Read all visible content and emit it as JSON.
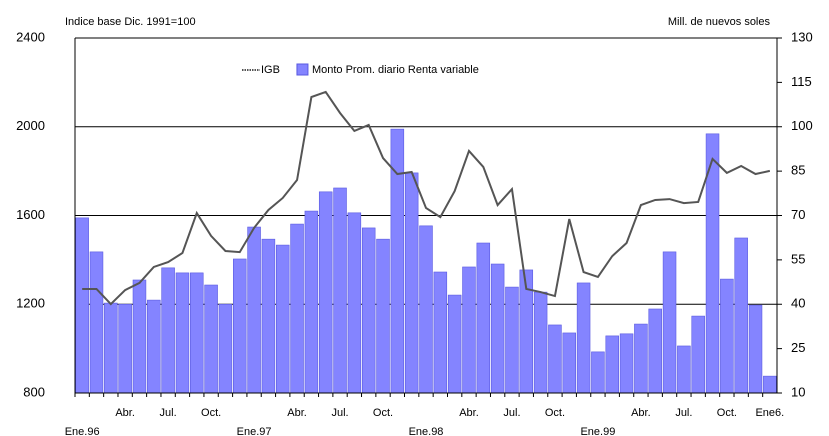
{
  "chart_data": {
    "type": "bar",
    "y_label": "Indice base Dic. 1991=100",
    "y2_label": "Mill. de nuevos soles",
    "categories": [
      "Ene.96",
      null,
      null,
      "Abr.",
      null,
      null,
      "Jul.",
      null,
      null,
      "Oct.",
      null,
      null,
      "Ene.97",
      null,
      null,
      "Abr.",
      null,
      null,
      "Jul.",
      null,
      null,
      "Oct.",
      null,
      null,
      "Ene.98",
      null,
      null,
      "Abr.",
      null,
      null,
      "Jul.",
      null,
      null,
      "Oct.",
      null,
      null,
      "Ene.99",
      null,
      null,
      "Abr.",
      null,
      null,
      "Jul.",
      null,
      null,
      "Oct.",
      null,
      null,
      "Ene6."
    ],
    "series": [
      {
        "name": "IGB",
        "type": "line",
        "color": "#555555",
        "axis": "y",
        "values": [
          1269,
          1269,
          1201,
          1264,
          1296,
          1368,
          1390,
          1431,
          1611,
          1508,
          1440,
          1435,
          1544,
          1625,
          1679,
          1760,
          2134,
          2157,
          2062,
          1981,
          2008,
          1859,
          1787,
          1796,
          1634,
          1593,
          1710,
          1891,
          1819,
          1647,
          1719,
          1269,
          1255,
          1237,
          1584,
          1345,
          1323,
          1417,
          1476,
          1647,
          1670,
          1674,
          1656,
          1661,
          1855,
          1792,
          1823,
          1787,
          1801
        ]
      },
      {
        "name": "Monto Prom. diario Renta variable",
        "type": "bar",
        "color": "#8484ff",
        "axis": "y2",
        "values": [
          69.2,
          57.7,
          40.4,
          40,
          48.2,
          41.4,
          52.3,
          50.6,
          50.6,
          46.5,
          40,
          55.3,
          66.1,
          62,
          60,
          67.1,
          71.5,
          78,
          79.3,
          70.9,
          65.8,
          62,
          99.2,
          84.4,
          66.5,
          50.9,
          43.1,
          52.6,
          60.7,
          53.6,
          45.8,
          51.6,
          44.1,
          33,
          30.3,
          47.2,
          23.9,
          29.3,
          30,
          33.3,
          38.4,
          57.7,
          25.9,
          36,
          97.6,
          48.5,
          62.4,
          39.7,
          15.7
        ]
      }
    ],
    "ylim": [
      800,
      2400
    ],
    "yticks": [
      800,
      1200,
      1600,
      2000,
      2400
    ],
    "y2lim": [
      10,
      130
    ],
    "y2ticks": [
      10,
      25,
      40,
      55,
      70,
      85,
      100,
      115,
      130
    ],
    "grid": true
  }
}
